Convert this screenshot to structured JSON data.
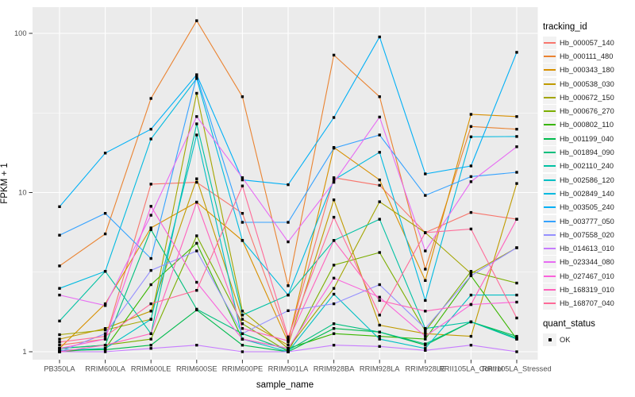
{
  "chart_data": {
    "type": "line",
    "title": "",
    "xlabel": "sample_name",
    "ylabel": "FPKM + 1",
    "y_scale": "log10",
    "y_ticks": [
      1,
      10,
      100
    ],
    "y_minor_gridlines": [
      3.162,
      31.623
    ],
    "ylim": [
      0.92,
      145
    ],
    "grid": true,
    "panel_bg": "#EBEBEB",
    "gridline_color": "#FFFFFF",
    "tick_color": "#333333",
    "tick_label_color": "#4D4D4D",
    "marker": {
      "shape": "square",
      "color": "#000000",
      "size": 3.4
    },
    "categories": [
      "PB350LA",
      "RRIM600LA",
      "RRIM600LE",
      "RRIM600SE",
      "RRIM600PE",
      "RRIM901LA",
      "RRIM928BA",
      "RRIM928LA",
      "RRIM928LE",
      "RRII105LA_Control",
      "RRII105LA_Stressed"
    ],
    "legend": {
      "title": "tracking_id",
      "position": "right"
    },
    "quant_legend": {
      "title": "quant_status",
      "items": [
        {
          "label": "OK",
          "marker": "black-square"
        }
      ]
    },
    "series": [
      {
        "name": "Hb_000057_140",
        "color": "#F8766D",
        "values": [
          1.1,
          1.2,
          11.3,
          11.6,
          7.4,
          1.2,
          12.4,
          11.1,
          5.6,
          7.5,
          6.8
        ]
      },
      {
        "name": "Hb_000111_480",
        "color": "#EA8331",
        "values": [
          3.46,
          5.5,
          39.0,
          120.0,
          40.0,
          2.6,
          73.0,
          40.0,
          3.3,
          26.0,
          25.0
        ]
      },
      {
        "name": "Hb_000343_180",
        "color": "#D89000",
        "values": [
          1.05,
          2.0,
          6.0,
          8.7,
          5.0,
          1.15,
          19.2,
          12.0,
          2.8,
          31.0,
          30.0
        ]
      },
      {
        "name": "Hb_000538_030",
        "color": "#C09B00",
        "values": [
          1.2,
          1.4,
          1.8,
          12.2,
          1.6,
          1.1,
          9.0,
          1.47,
          1.3,
          1.25,
          11.4
        ]
      },
      {
        "name": "Hb_000672_150",
        "color": "#A3A500",
        "values": [
          1.28,
          1.37,
          1.6,
          42.0,
          1.8,
          1.05,
          2.5,
          8.75,
          5.6,
          3.1,
          4.5
        ]
      },
      {
        "name": "Hb_000676_270",
        "color": "#7CAE00",
        "values": [
          1.05,
          1.1,
          1.2,
          5.35,
          1.5,
          1.0,
          3.5,
          4.2,
          1.35,
          3.2,
          2.7
        ]
      },
      {
        "name": "Hb_000802_110",
        "color": "#39B600",
        "values": [
          1.0,
          1.05,
          2.64,
          4.8,
          1.2,
          1.05,
          1.3,
          1.25,
          1.2,
          3.0,
          1.2
        ]
      },
      {
        "name": "Hb_001199_040",
        "color": "#00BB4E",
        "values": [
          1.02,
          1.03,
          1.1,
          1.83,
          1.1,
          1.0,
          1.4,
          1.33,
          1.1,
          1.54,
          1.25
        ]
      },
      {
        "name": "Hb_001894_090",
        "color": "#00BF7D",
        "values": [
          1.05,
          1.1,
          5.85,
          1.85,
          1.3,
          1.02,
          1.5,
          1.33,
          1.12,
          1.54,
          1.22
        ]
      },
      {
        "name": "Hb_002110_240",
        "color": "#00C1A3",
        "values": [
          1.56,
          3.2,
          1.3,
          27.0,
          1.7,
          2.27,
          5.0,
          6.8,
          1.4,
          1.54,
          1.2
        ]
      },
      {
        "name": "Hb_002586_120",
        "color": "#00BFC4",
        "values": [
          1.02,
          1.05,
          1.6,
          23.0,
          1.2,
          1.0,
          2.3,
          1.2,
          1.05,
          2.27,
          2.27
        ]
      },
      {
        "name": "Hb_002849_140",
        "color": "#00BAE0",
        "values": [
          2.5,
          3.2,
          21.7,
          52.0,
          5.0,
          2.27,
          12.0,
          17.9,
          2.1,
          22.4,
          22.5
        ]
      },
      {
        "name": "Hb_003505_240",
        "color": "#00B0F6",
        "values": [
          8.15,
          17.7,
          25.0,
          55.0,
          12.0,
          11.2,
          29.6,
          95.0,
          13.1,
          14.7,
          76.0
        ]
      },
      {
        "name": "Hb_003777_050",
        "color": "#35A2FF",
        "values": [
          5.4,
          7.4,
          3.85,
          54.0,
          6.5,
          6.5,
          19.0,
          23.0,
          9.6,
          12.6,
          13.4
        ]
      },
      {
        "name": "Hb_007558_020",
        "color": "#9590FF",
        "values": [
          1.0,
          1.3,
          3.24,
          4.3,
          1.3,
          1.81,
          2.0,
          2.64,
          1.4,
          3.0,
          4.5
        ]
      },
      {
        "name": "Hb_014613_010",
        "color": "#C77CFF",
        "values": [
          1.0,
          1.0,
          1.05,
          1.1,
          1.0,
          1.0,
          1.1,
          1.08,
          1.02,
          1.1,
          1.0
        ]
      },
      {
        "name": "Hb_023344_080",
        "color": "#E76BF3",
        "values": [
          2.27,
          1.95,
          7.2,
          30.0,
          12.4,
          4.9,
          11.6,
          29.8,
          4.3,
          11.7,
          19.4
        ]
      },
      {
        "name": "Hb_027467_010",
        "color": "#FA62DB",
        "values": [
          1.05,
          1.2,
          8.2,
          2.73,
          1.2,
          1.05,
          2.9,
          2.2,
          1.25,
          1.98,
          2.05
        ]
      },
      {
        "name": "Hb_168319_010",
        "color": "#FF62BC",
        "values": [
          1.0,
          1.1,
          1.3,
          8.7,
          1.4,
          1.17,
          5.0,
          2.1,
          1.8,
          1.98,
          6.8
        ]
      },
      {
        "name": "Hb_168707_040",
        "color": "#FF6A98",
        "values": [
          1.15,
          1.25,
          2.0,
          2.43,
          11.0,
          1.24,
          7.0,
          1.7,
          5.6,
          5.9,
          1.63
        ]
      }
    ]
  }
}
